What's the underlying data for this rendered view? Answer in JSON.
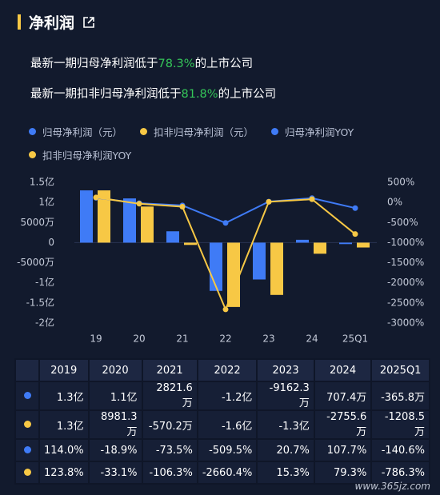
{
  "header": {
    "title": "净利润"
  },
  "notes": [
    {
      "text": "最新一期归母净利润低于",
      "highlight": "78.3%",
      "suffix": "的上市公司"
    },
    {
      "text": "最新一期扣非归母净利润低于",
      "highlight": "81.8%",
      "suffix": "的上市公司"
    }
  ],
  "chart_data": {
    "type": "bar-line",
    "categories": [
      "19",
      "20",
      "21",
      "22",
      "23",
      "24",
      "25Q1"
    ],
    "ylim": [
      -2,
      1.5
    ],
    "yticks": [
      {
        "value": 1.5,
        "label": "1.5亿"
      },
      {
        "value": 1,
        "label": "1亿"
      },
      {
        "value": 0.5,
        "label": "5000万"
      },
      0,
      {
        "value": -0.5,
        "label": "-5000万"
      },
      {
        "value": -1,
        "label": "-1亿"
      },
      {
        "value": -1.5,
        "label": "-1.5亿"
      },
      {
        "value": -2,
        "label": "-2亿"
      }
    ],
    "y2lim": [
      -3000,
      500
    ],
    "y2ticks": [
      {
        "value": 500,
        "label": "500%"
      },
      {
        "value": 0,
        "label": "0%"
      },
      {
        "value": -500,
        "label": "-500%"
      },
      {
        "value": -1000,
        "label": "-1000%"
      },
      {
        "value": -1500,
        "label": "-1500%"
      },
      {
        "value": -2000,
        "label": "-2000%"
      },
      {
        "value": -2500,
        "label": "-2500%"
      },
      {
        "value": -3000,
        "label": "-3000%"
      }
    ],
    "series": [
      {
        "name": "归母净利润（元）",
        "color": "#3f7bf6",
        "type": "bar",
        "values": [
          1.3,
          1.1,
          0.28216,
          -1.2,
          -0.91623,
          0.07074,
          -0.03658
        ],
        "value_labels": [
          "1.3亿",
          "1.1亿",
          "2821.6万",
          "-1.2亿",
          "-9162.3万",
          "707.4万",
          "-365.8万"
        ]
      },
      {
        "name": "扣非归母净利润（元）",
        "color": "#f7c845",
        "type": "bar",
        "values": [
          1.3,
          0.89813,
          -0.05702,
          -1.6,
          -1.3,
          -0.27556,
          -0.12085
        ],
        "value_labels": [
          "1.3亿",
          "8981.3万",
          "-570.2万",
          "-1.6亿",
          "-1.3亿",
          "-2755.6万",
          "-1208.5万"
        ]
      },
      {
        "name": "归母净利润YOY",
        "color": "#3f7bf6",
        "type": "line",
        "axis": "y2",
        "values": [
          114,
          -18.9,
          -73.5,
          -509.5,
          20.7,
          107.7,
          -140.6
        ],
        "value_labels": [
          "114.0%",
          "-18.9%",
          "-73.5%",
          "-509.5%",
          "20.7%",
          "107.7%",
          "-140.6%"
        ]
      },
      {
        "name": "扣非归母净利润YOY",
        "color": "#f7c845",
        "type": "line",
        "axis": "y2",
        "values": [
          123.8,
          -33.1,
          -106.3,
          -2660.4,
          15.3,
          79.3,
          -786.3
        ],
        "value_labels": [
          "123.8%",
          "-33.1%",
          "-106.3%",
          "-2660.4%",
          "15.3%",
          "79.3%",
          "-786.3%"
        ]
      }
    ]
  },
  "table": {
    "columns": [
      "2019",
      "2020",
      "2021",
      "2022",
      "2023",
      "2024",
      "2025Q1"
    ]
  },
  "watermark": "www.365jz.com"
}
